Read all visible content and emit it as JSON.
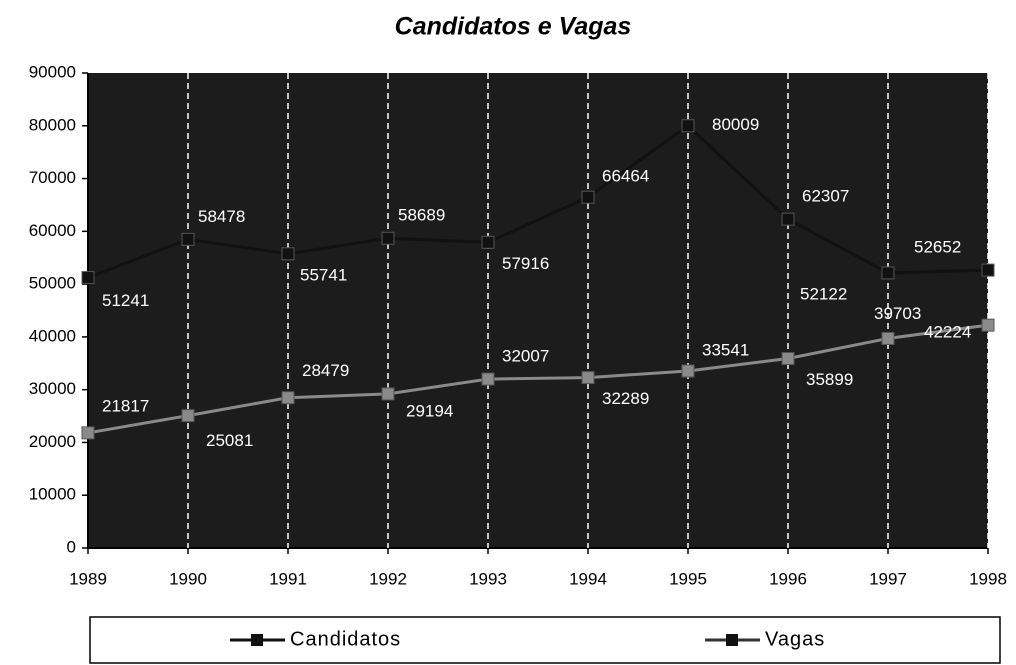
{
  "chart_data": {
    "type": "line",
    "title": "Candidatos e Vagas",
    "categories": [
      "1989",
      "1990",
      "1991",
      "1992",
      "1993",
      "1994",
      "1995",
      "1996",
      "1997",
      "1998"
    ],
    "series": [
      {
        "name": "Candidatos",
        "color": "#111111",
        "values": [
          51241,
          58478,
          55741,
          58689,
          57916,
          66464,
          80009,
          62307,
          52122,
          52652
        ]
      },
      {
        "name": "Vagas",
        "color": "#8a8a8a",
        "values": [
          21817,
          25081,
          28479,
          29194,
          32007,
          32289,
          33541,
          35899,
          39703,
          42224
        ]
      }
    ],
    "ylim": [
      0,
      90000
    ],
    "yticks": [
      0,
      10000,
      20000,
      30000,
      40000,
      50000,
      60000,
      70000,
      80000,
      90000
    ],
    "grid": "x",
    "legend": "bottom"
  }
}
